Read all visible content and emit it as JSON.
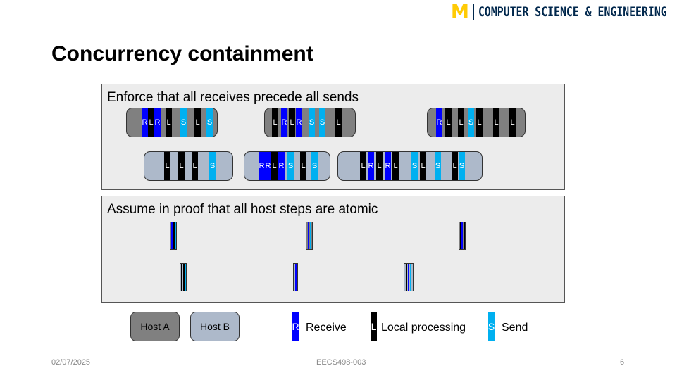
{
  "logo": {
    "mark": "M",
    "text": "COMPUTER SCIENCE & ENGINEERING"
  },
  "slide_title": "Concurrency containment",
  "panel_top": {
    "heading": "Enforce that all receives precede all sends",
    "hosts": [
      {
        "host": "A",
        "steps": [
          "R",
          "L",
          "R",
          "L",
          "S",
          "L",
          "S"
        ]
      },
      {
        "host": "A",
        "steps": [
          "L",
          "R",
          "L",
          "R",
          "S",
          "S",
          "L"
        ]
      },
      {
        "host": "A",
        "steps": [
          "R",
          "L",
          "L",
          "S",
          "L",
          "L",
          "L"
        ]
      },
      {
        "host": "B",
        "steps": [
          "L",
          "L",
          "L",
          "S"
        ]
      },
      {
        "host": "B",
        "steps": [
          "R",
          "R",
          "L",
          "R",
          "S",
          "L",
          "S"
        ]
      },
      {
        "host": "B",
        "steps": [
          "L",
          "R",
          "L",
          "R",
          "L",
          "S",
          "L",
          "S",
          "L",
          "S"
        ]
      }
    ]
  },
  "panel_bottom": {
    "heading": "Assume in proof that all host steps are atomic"
  },
  "legend": {
    "host_a": "Host A",
    "host_b": "Host B",
    "receive": {
      "letter": "R",
      "label": "Receive"
    },
    "local": {
      "letter": "L",
      "label": "Local processing"
    },
    "send": {
      "letter": "S",
      "label": "Send"
    }
  },
  "colors": {
    "receive": "#0000ff",
    "local": "#000000",
    "send": "#00b0f0",
    "host_a": "#808080",
    "host_b": "#adb9ca",
    "logo_maize": "#FFCB05",
    "logo_blue": "#00274C"
  },
  "footer": {
    "date": "02/07/2025",
    "course": "EECS498-003",
    "page": "6"
  }
}
